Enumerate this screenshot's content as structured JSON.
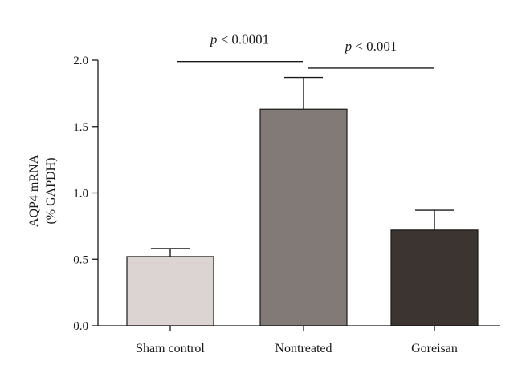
{
  "chart_data": {
    "type": "bar",
    "title": "",
    "xlabel": "",
    "ylabel_lines": [
      "AQP4 mRNA",
      "(% GAPDH)"
    ],
    "ylim": [
      0,
      2.0
    ],
    "yticks": [
      "0.0",
      "0.5",
      "1.0",
      "1.5",
      "2.0"
    ],
    "categories": [
      "Sham control",
      "Nontreated",
      "Goreisan"
    ],
    "values": [
      0.52,
      1.63,
      0.72
    ],
    "error_upper": [
      0.58,
      1.87,
      0.87
    ],
    "bar_colors": [
      "#dcd3d3",
      "#827a77",
      "#3b3431"
    ],
    "grid": false,
    "legend": "none",
    "significance": [
      {
        "from": 0,
        "to": 1,
        "level": 1.99,
        "prefix": "p",
        "text": " < 0.0001"
      },
      {
        "from": 1,
        "to": 2,
        "level": 1.94,
        "prefix": "p",
        "text": " < 0.001"
      }
    ]
  }
}
